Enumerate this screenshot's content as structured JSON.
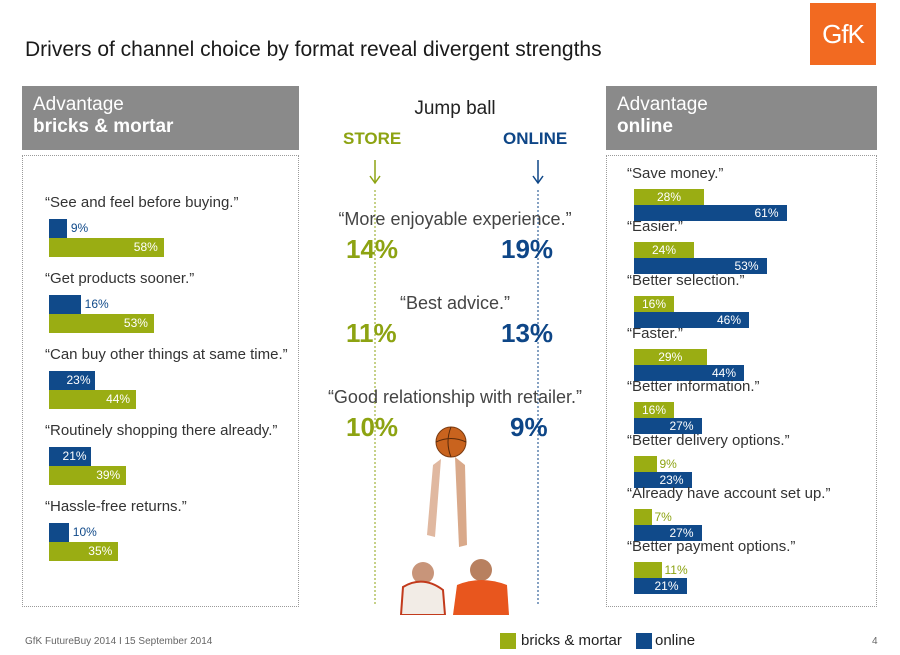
{
  "title": "Drivers of channel choice by format reveal divergent strengths",
  "logo": "GfK",
  "left_panel": {
    "line1": "Advantage",
    "line2": "bricks & mortar"
  },
  "right_panel": {
    "line1": "Advantage",
    "line2": "online"
  },
  "middle": {
    "heading": "Jump ball",
    "store_label": "STORE",
    "online_label": "ONLINE",
    "items": [
      {
        "label": "“More enjoyable experience.”",
        "store": "14%",
        "online": "19%"
      },
      {
        "label": "“Best advice.”",
        "store": "11%",
        "online": "13%"
      },
      {
        "label": "“Good relationship with retailer.”",
        "store": "10%",
        "online": "9%"
      }
    ]
  },
  "colors": {
    "bricks_mortar": "#9aad13",
    "online": "#104a8a",
    "store_text": "#8da312",
    "logo": "#f26a21"
  },
  "chart_data": [
    {
      "type": "bar",
      "title": "Advantage bricks & mortar",
      "categories": [
        "“See and feel before buying.”",
        "“Get products sooner.”",
        "“Can buy other things at same time.”",
        "“Routinely shopping there already.”",
        "“Hassle-free returns.”"
      ],
      "series": [
        {
          "name": "online",
          "values": [
            9,
            16,
            23,
            21,
            10
          ],
          "labels": [
            "9%",
            "16%",
            "23%",
            "21%",
            "10%"
          ]
        },
        {
          "name": "bricks & mortar",
          "values": [
            58,
            53,
            44,
            39,
            35
          ],
          "labels": [
            "58%",
            "53%",
            "44%",
            "39%",
            "35%"
          ]
        }
      ]
    },
    {
      "type": "bar",
      "title": "Advantage online",
      "categories": [
        "“Save money.”",
        "“Easier.”",
        "“Better selection.”",
        "“Faster.”",
        "“Better information.”",
        "“Better delivery options.”",
        "“Already have account set up.”",
        "“Better payment options.”"
      ],
      "series": [
        {
          "name": "bricks & mortar",
          "values": [
            28,
            24,
            16,
            29,
            16,
            9,
            7,
            11
          ],
          "labels": [
            "28%",
            "24%",
            "16%",
            "29%",
            "16%",
            "9%",
            "7%",
            "11%"
          ]
        },
        {
          "name": "online",
          "values": [
            61,
            53,
            46,
            44,
            27,
            23,
            27,
            21
          ],
          "labels": [
            "61%",
            "53%",
            "46%",
            "44%",
            "27%",
            "23%",
            "27%",
            "21%"
          ]
        }
      ]
    }
  ],
  "legend": [
    {
      "label": "bricks & mortar"
    },
    {
      "label": "online"
    }
  ],
  "footer": "GfK FutureBuy 2014  I 15 September 2014",
  "page_number": "4"
}
